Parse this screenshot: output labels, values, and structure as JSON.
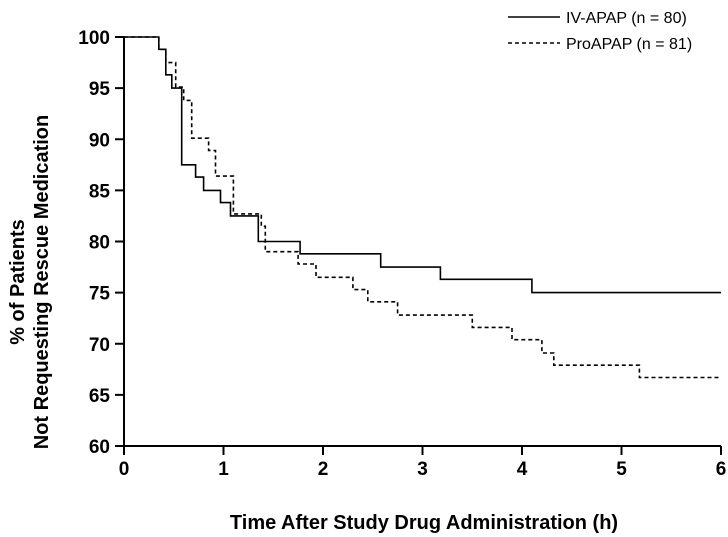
{
  "chart_data": {
    "type": "line",
    "xlabel": "Time After Study Drug Administration (h)",
    "ylabel_lines": [
      "% of Patients",
      "Not Requesting Rescue Medication"
    ],
    "xlim": [
      0,
      6
    ],
    "ylim": [
      60,
      100
    ],
    "x_ticks": [
      0,
      1,
      2,
      3,
      4,
      5,
      6
    ],
    "y_ticks": [
      60,
      65,
      70,
      75,
      80,
      85,
      90,
      95,
      100
    ],
    "grid": false,
    "legend_position": "top-right",
    "series": [
      {
        "name": "IV-APAP (n = 80)",
        "line_style": "solid",
        "color": "#000000",
        "points": [
          [
            0,
            100
          ],
          [
            0.35,
            100
          ],
          [
            0.35,
            98.8
          ],
          [
            0.42,
            98.8
          ],
          [
            0.42,
            96.3
          ],
          [
            0.48,
            96.3
          ],
          [
            0.48,
            95
          ],
          [
            0.58,
            95
          ],
          [
            0.58,
            87.5
          ],
          [
            0.72,
            87.5
          ],
          [
            0.72,
            86.3
          ],
          [
            0.8,
            86.3
          ],
          [
            0.8,
            85
          ],
          [
            0.97,
            85
          ],
          [
            0.97,
            83.8
          ],
          [
            1.07,
            83.8
          ],
          [
            1.07,
            82.5
          ],
          [
            1.35,
            82.5
          ],
          [
            1.35,
            80
          ],
          [
            1.77,
            80
          ],
          [
            1.77,
            78.8
          ],
          [
            2.58,
            78.8
          ],
          [
            2.58,
            77.5
          ],
          [
            3.18,
            77.5
          ],
          [
            3.18,
            76.3
          ],
          [
            4.1,
            76.3
          ],
          [
            4.1,
            75
          ],
          [
            6,
            75
          ]
        ]
      },
      {
        "name": "ProAPAP (n = 81)",
        "line_style": "dashed",
        "color": "#000000",
        "points": [
          [
            0,
            100
          ],
          [
            0.35,
            100
          ],
          [
            0.35,
            98.8
          ],
          [
            0.42,
            98.8
          ],
          [
            0.42,
            97.5
          ],
          [
            0.52,
            97.5
          ],
          [
            0.52,
            95.1
          ],
          [
            0.6,
            95.1
          ],
          [
            0.6,
            93.8
          ],
          [
            0.68,
            93.8
          ],
          [
            0.68,
            90.1
          ],
          [
            0.85,
            90.1
          ],
          [
            0.85,
            88.9
          ],
          [
            0.92,
            88.9
          ],
          [
            0.92,
            86.4
          ],
          [
            1.1,
            86.4
          ],
          [
            1.1,
            82.7
          ],
          [
            1.38,
            82.7
          ],
          [
            1.38,
            81.5
          ],
          [
            1.42,
            81.5
          ],
          [
            1.42,
            79
          ],
          [
            1.75,
            79
          ],
          [
            1.75,
            77.8
          ],
          [
            1.93,
            77.8
          ],
          [
            1.93,
            76.5
          ],
          [
            2.3,
            76.5
          ],
          [
            2.3,
            75.3
          ],
          [
            2.45,
            75.3
          ],
          [
            2.45,
            74.1
          ],
          [
            2.75,
            74.1
          ],
          [
            2.75,
            72.8
          ],
          [
            3.5,
            72.8
          ],
          [
            3.5,
            71.6
          ],
          [
            3.9,
            71.6
          ],
          [
            3.9,
            70.4
          ],
          [
            4.2,
            70.4
          ],
          [
            4.2,
            69.1
          ],
          [
            4.32,
            69.1
          ],
          [
            4.32,
            67.9
          ],
          [
            5.18,
            67.9
          ],
          [
            5.18,
            66.7
          ],
          [
            6,
            66.7
          ]
        ]
      }
    ]
  }
}
